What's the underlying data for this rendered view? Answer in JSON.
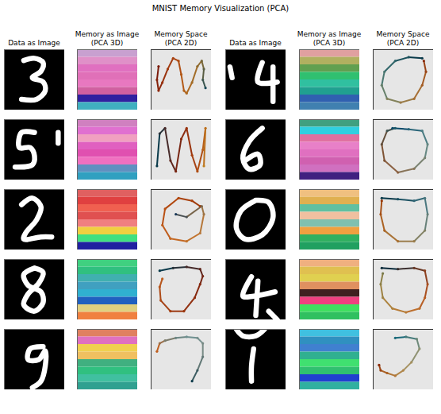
{
  "chart_data": {
    "type": "image_grid",
    "title": "MNIST Memory Visualization (PCA)",
    "column_titles": [
      "Data as Image",
      "Memory as Image (PCA 3D)",
      "Memory Space (PCA 2D)",
      "Data as Image",
      "Memory as Image (PCA 3D)",
      "Memory Space (PCA 2D)"
    ],
    "tick_labels": false,
    "image_xlim": [
      0,
      28
    ],
    "image_ylim": [
      0,
      28
    ],
    "space_xlim": [
      0,
      1
    ],
    "space_ylim": [
      0,
      1
    ],
    "samples": [
      {
        "strokes": [
          [
            [
              9,
              5
            ],
            [
              14,
              4
            ],
            [
              18,
              6
            ],
            [
              17,
              10
            ],
            [
              13,
              13
            ],
            [
              18,
              15
            ],
            [
              19,
              19
            ],
            [
              15,
              23
            ],
            [
              8,
              23
            ]
          ]
        ],
        "memory_bands": [
          "#c8a0d0",
          "#e090c8",
          "#e070c0",
          "#e070b8",
          "#e878c0",
          "#d060a0",
          "#3020a0",
          "#40b0c0"
        ],
        "points": [
          [
            0.08,
            0.75
          ],
          [
            0.05,
            0.5
          ],
          [
            0.08,
            0.3
          ],
          [
            0.15,
            0.45
          ],
          [
            0.25,
            0.7
          ],
          [
            0.35,
            0.9
          ],
          [
            0.45,
            0.85
          ],
          [
            0.5,
            0.6
          ],
          [
            0.55,
            0.3
          ],
          [
            0.6,
            0.25
          ],
          [
            0.7,
            0.45
          ],
          [
            0.8,
            0.75
          ],
          [
            0.88,
            0.85
          ],
          [
            0.92,
            0.7
          ],
          [
            0.9,
            0.5
          ],
          [
            0.95,
            0.35
          ]
        ],
        "colors": [
          "#7a1a0a",
          "#b04010",
          "#c08020",
          "#1a4a5a"
        ]
      },
      {
        "strokes": [
          [
            [
              17,
              6
            ],
            [
              15,
              15
            ],
            [
              24,
              15
            ]
          ],
          [
            [
              22,
              8
            ],
            [
              22,
              24
            ]
          ],
          [
            [
              2,
              8
            ],
            [
              3,
              13
            ]
          ]
        ],
        "memory_bands": [
          "#e0a0a0",
          "#b0b060",
          "#60a050",
          "#30c070",
          "#30c0a0",
          "#20a090",
          "#3060b0",
          "#4080b0"
        ],
        "points": [
          [
            0.85,
            0.9
          ],
          [
            0.6,
            0.92
          ],
          [
            0.35,
            0.85
          ],
          [
            0.15,
            0.65
          ],
          [
            0.1,
            0.4
          ],
          [
            0.2,
            0.15
          ],
          [
            0.45,
            0.08
          ],
          [
            0.7,
            0.15
          ],
          [
            0.85,
            0.4
          ],
          [
            0.92,
            0.65
          ],
          [
            0.88,
            0.85
          ]
        ],
        "colors": [
          "#0a3a4a",
          "#4a8a8a",
          "#c08030",
          "#8a2a0a"
        ]
      },
      {
        "strokes": [
          [
            [
              14,
              6
            ],
            [
              8,
              6
            ],
            [
              7,
              13
            ],
            [
              12,
              13
            ],
            [
              14,
              17
            ],
            [
              13,
              21
            ],
            [
              5,
              22
            ]
          ],
          [
            [
              25,
              6
            ],
            [
              25,
              11
            ]
          ]
        ],
        "memory_bands": [
          "#d080c0",
          "#e070d0",
          "#f0a0c0",
          "#e060c0",
          "#e050b0",
          "#f070c0",
          "#6090c0",
          "#30a0c0"
        ],
        "points": [
          [
            0.05,
            0.2
          ],
          [
            0.1,
            0.8
          ],
          [
            0.2,
            0.9
          ],
          [
            0.3,
            0.3
          ],
          [
            0.4,
            0.1
          ],
          [
            0.5,
            0.7
          ],
          [
            0.6,
            0.9
          ],
          [
            0.7,
            0.4
          ],
          [
            0.8,
            0.1
          ],
          [
            0.9,
            0.5
          ],
          [
            0.95,
            0.9
          ],
          [
            0.92,
            0.2
          ]
        ],
        "colors": [
          "#0a3a4a",
          "#7a1a0a",
          "#b04010",
          "#c08020"
        ]
      },
      {
        "strokes": [
          [
            [
              17,
              4
            ],
            [
              11,
              10
            ],
            [
              8,
              18
            ],
            [
              11,
              23
            ],
            [
              16,
              21
            ],
            [
              15,
              16
            ],
            [
              9,
              19
            ]
          ]
        ],
        "memory_bands": [
          "#40a080",
          "#30d0e0",
          "#e070a0",
          "#e880c8",
          "#e070c0",
          "#d060b0",
          "#d070c0",
          "#402080"
        ],
        "points": [
          [
            0.3,
            0.9
          ],
          [
            0.6,
            0.88
          ],
          [
            0.85,
            0.85
          ],
          [
            0.95,
            0.6
          ],
          [
            0.9,
            0.35
          ],
          [
            0.7,
            0.15
          ],
          [
            0.4,
            0.08
          ],
          [
            0.15,
            0.3
          ],
          [
            0.1,
            0.6
          ],
          [
            0.2,
            0.85
          ],
          [
            0.35,
            0.9
          ]
        ],
        "colors": [
          "#0a4a6a",
          "#7aaaa0",
          "#a04010",
          "#1a5a6a"
        ]
      },
      {
        "strokes": [
          [
            [
              8,
              7
            ],
            [
              13,
              4
            ],
            [
              17,
              8
            ],
            [
              15,
              14
            ],
            [
              10,
              20
            ],
            [
              9,
              23
            ],
            [
              17,
              22
            ],
            [
              22,
              22
            ]
          ]
        ],
        "memory_bands": [
          "#e06060",
          "#e04040",
          "#f06050",
          "#e05050",
          "#f08080",
          "#f0d040",
          "#40e080",
          "#2020a0"
        ],
        "points": [
          [
            0.85,
            0.75
          ],
          [
            0.7,
            0.85
          ],
          [
            0.45,
            0.9
          ],
          [
            0.2,
            0.7
          ],
          [
            0.15,
            0.4
          ],
          [
            0.3,
            0.15
          ],
          [
            0.6,
            0.1
          ],
          [
            0.85,
            0.25
          ],
          [
            0.92,
            0.6
          ],
          [
            0.88,
            0.75
          ],
          [
            0.6,
            0.55
          ],
          [
            0.4,
            0.6
          ]
        ],
        "colors": [
          "#a03a0a",
          "#c05010",
          "#d09040",
          "#1a3a5a"
        ]
      },
      {
        "strokes": [
          [
            [
              14,
              5
            ],
            [
              7,
              10
            ],
            [
              5,
              18
            ],
            [
              9,
              23
            ],
            [
              17,
              21
            ],
            [
              22,
              13
            ],
            [
              20,
              6
            ],
            [
              14,
              5
            ]
          ]
        ],
        "memory_bands": [
          "#f0c080",
          "#e0b050",
          "#60c0a0",
          "#f0c0a0",
          "#80c0b0",
          "#f0a040",
          "#30b060",
          "#20a060"
        ],
        "points": [
          [
            0.1,
            0.9
          ],
          [
            0.4,
            0.88
          ],
          [
            0.7,
            0.85
          ],
          [
            0.9,
            0.9
          ],
          [
            0.95,
            0.6
          ],
          [
            0.9,
            0.3
          ],
          [
            0.7,
            0.1
          ],
          [
            0.4,
            0.1
          ],
          [
            0.15,
            0.3
          ],
          [
            0.08,
            0.6
          ],
          [
            0.1,
            0.85
          ]
        ],
        "colors": [
          "#0a3a4a",
          "#4a8aa0",
          "#c08030",
          "#9a3a0a"
        ]
      },
      {
        "strokes": [
          [
            [
              14,
              4
            ],
            [
              9,
              7
            ],
            [
              11,
              12
            ],
            [
              17,
              15
            ],
            [
              18,
              20
            ],
            [
              14,
              24
            ],
            [
              9,
              21
            ],
            [
              11,
              16
            ],
            [
              16,
              11
            ],
            [
              18,
              6
            ],
            [
              14,
              4
            ]
          ]
        ],
        "memory_bands": [
          "#40d080",
          "#30c080",
          "#40b0b0",
          "#40a0c0",
          "#30b0d0",
          "#2060c0",
          "#e0d080",
          "#f08040"
        ],
        "points": [
          [
            0.1,
            0.85
          ],
          [
            0.35,
            0.9
          ],
          [
            0.6,
            0.92
          ],
          [
            0.85,
            0.88
          ],
          [
            0.9,
            0.75
          ],
          [
            0.85,
            0.6
          ],
          [
            0.75,
            0.35
          ],
          [
            0.55,
            0.1
          ],
          [
            0.3,
            0.1
          ],
          [
            0.12,
            0.3
          ],
          [
            0.1,
            0.55
          ],
          [
            0.15,
            0.7
          ]
        ],
        "colors": [
          "#0a3a4a",
          "#7a1a0a",
          "#a03a10",
          "#c06020"
        ]
      },
      {
        "strokes": [
          [
            [
              12,
              8
            ],
            [
              8,
              17
            ],
            [
              13,
              17
            ],
            [
              23,
              15
            ]
          ],
          [
            [
              15,
              10
            ],
            [
              14,
              26
            ]
          ],
          [
            [
              20,
              24
            ],
            [
              24,
              28
            ]
          ]
        ],
        "memory_bands": [
          "#f0b080",
          "#e0c050",
          "#e0d050",
          "#e09060",
          "#402020",
          "#f04080",
          "#40e060",
          "#30c060"
        ],
        "points": [
          [
            0.1,
            0.9
          ],
          [
            0.4,
            0.88
          ],
          [
            0.7,
            0.9
          ],
          [
            0.9,
            0.85
          ],
          [
            0.95,
            0.6
          ],
          [
            0.9,
            0.35
          ],
          [
            0.8,
            0.15
          ],
          [
            0.55,
            0.08
          ],
          [
            0.3,
            0.15
          ],
          [
            0.12,
            0.35
          ],
          [
            0.08,
            0.6
          ],
          [
            0.12,
            0.8
          ]
        ],
        "colors": [
          "#0a2a3a",
          "#c04010",
          "#c09040",
          "#7a7a4a"
        ]
      },
      {
        "strokes": [
          [
            [
              18,
              8
            ],
            [
              12,
              9
            ],
            [
              11,
              14
            ],
            [
              16,
              14
            ],
            [
              19,
              10
            ],
            [
              19,
              17
            ],
            [
              17,
              24
            ],
            [
              13,
              27
            ]
          ]
        ],
        "memory_bands": [
          "#e08060",
          "#e070c0",
          "#f0d050",
          "#f0c060",
          "#40b080",
          "#30c080",
          "#40c0a0",
          "#30a090"
        ],
        "points": [
          [
            0.05,
            0.65
          ],
          [
            0.1,
            0.8
          ],
          [
            0.2,
            0.85
          ],
          [
            0.4,
            0.9
          ],
          [
            0.6,
            0.92
          ],
          [
            0.8,
            0.9
          ],
          [
            0.9,
            0.8
          ],
          [
            0.9,
            0.55
          ],
          [
            0.8,
            0.3
          ],
          [
            0.7,
            0.1
          ]
        ],
        "colors": [
          "#c06020",
          "#4a8a9a",
          "#a0a090",
          "#0a3a4a"
        ]
      },
      {
        "strokes": [
          [
            [
              13,
              9
            ],
            [
              12,
              17
            ],
            [
              12,
              24
            ]
          ],
          [
            [
              5,
              0
            ],
            [
              8,
              3
            ],
            [
              14,
              3
            ],
            [
              18,
              0
            ]
          ]
        ],
        "memory_bands": [
          "#40c0e0",
          "#3090c0",
          "#4080d0",
          "#30b090",
          "#40e070",
          "#30c070",
          "#2040d0",
          "#30b0a0"
        ],
        "points": [
          [
            0.35,
            0.9
          ],
          [
            0.55,
            0.92
          ],
          [
            0.75,
            0.88
          ],
          [
            0.8,
            0.7
          ],
          [
            0.65,
            0.45
          ],
          [
            0.5,
            0.3
          ],
          [
            0.35,
            0.2
          ],
          [
            0.2,
            0.25
          ],
          [
            0.08,
            0.3
          ],
          [
            0.05,
            0.4
          ]
        ],
        "colors": [
          "#1a6a7a",
          "#a0a080",
          "#c08030",
          "#8a2a0a"
        ]
      }
    ]
  }
}
